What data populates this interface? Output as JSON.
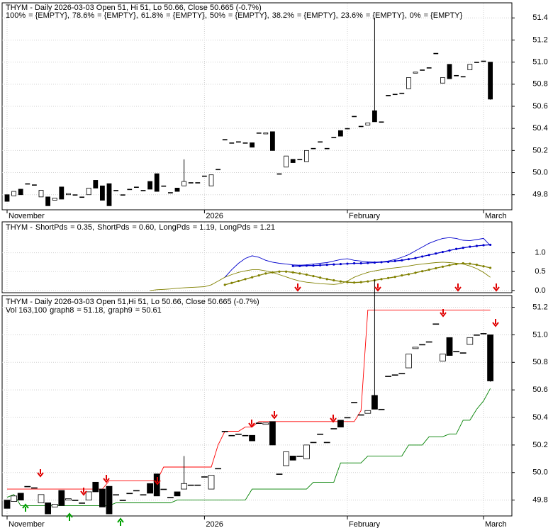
{
  "chart_data": [
    {
      "type": "candlestick",
      "title": "THYM - Daily 2026-03-03 Open 51, Hi 51, Lo 50.66, Close 50.665 (-0.7%)",
      "legend": [
        {
          "label": "100%",
          "text": "= {EMPTY},",
          "color": "#ff0000"
        },
        {
          "label": "78.6%",
          "text": "= {EMPTY},",
          "color": "#cc00cc"
        },
        {
          "label": "61.8%",
          "text": "= {EMPTY},",
          "color": "#a0a0c0"
        },
        {
          "label": "50%",
          "text": "= {EMPTY},",
          "color": "#0000ff"
        },
        {
          "label": "38.2%",
          "text": "= {EMPTY},",
          "color": "#8ca0c8"
        },
        {
          "label": "23.6%",
          "text": "= {EMPTY},",
          "color": "#e0208c"
        },
        {
          "label": "0%",
          "text": "= {EMPTY}",
          "color": "#00a000"
        }
      ],
      "categories": [
        "November",
        null,
        null,
        null,
        null,
        null,
        null,
        null,
        null,
        null,
        null,
        null,
        null,
        null,
        null,
        null,
        null,
        null,
        null,
        null,
        null,
        null,
        null,
        null,
        null,
        null,
        null,
        null,
        null,
        "2026",
        null,
        null,
        null,
        null,
        null,
        null,
        null,
        null,
        null,
        null,
        null,
        null,
        null,
        null,
        null,
        null,
        null,
        null,
        null,
        null,
        "February",
        null,
        null,
        null,
        null,
        null,
        null,
        null,
        null,
        null,
        null,
        null,
        null,
        null,
        null,
        null,
        null,
        null,
        null,
        null,
        "March",
        null
      ],
      "open": [
        49.8,
        49.79,
        49.85,
        49.9,
        49.89,
        49.78,
        49.78,
        49.75,
        49.87,
        49.8,
        49.8,
        49.78,
        49.8,
        49.93,
        49.88,
        49.9,
        49.84,
        49.8,
        49.85,
        49.87,
        49.84,
        49.92,
        49.99,
        49.88,
        49.82,
        49.86,
        49.88,
        49.91,
        49.91,
        49.97,
        49.88,
        50.03,
        50.3,
        50.27,
        50.28,
        50.27,
        50.27,
        50.36,
        50.35,
        50.37,
        49.99,
        50.05,
        50.12,
        50.12,
        50.1,
        50.22,
        50.28,
        50.22,
        50.32,
        50.38,
        50.4,
        50.51,
        50.42,
        50.43,
        50.56,
        50.46,
        50.7,
        50.71,
        50.72,
        50.76,
        50.9,
        50.93,
        50.95,
        51.08,
        50.81,
        50.98,
        50.88,
        50.87,
        50.93,
        51.0,
        51.01,
        51
      ],
      "high": [
        49.8,
        49.83,
        49.85,
        49.9,
        49.89,
        49.84,
        49.78,
        49.77,
        49.87,
        49.81,
        49.8,
        49.78,
        49.86,
        49.93,
        49.88,
        49.9,
        49.84,
        49.8,
        49.85,
        49.87,
        49.84,
        49.92,
        49.99,
        49.88,
        49.82,
        49.86,
        50.12,
        49.91,
        49.91,
        49.97,
        49.98,
        50.03,
        50.3,
        50.27,
        50.28,
        50.27,
        50.27,
        50.36,
        50.36,
        50.37,
        49.99,
        50.15,
        50.12,
        50.12,
        50.2,
        50.22,
        50.28,
        50.22,
        50.32,
        50.38,
        50.4,
        50.51,
        50.42,
        50.45,
        51.4,
        50.46,
        50.7,
        50.71,
        50.72,
        50.86,
        50.91,
        50.93,
        50.95,
        51.08,
        50.86,
        50.98,
        50.88,
        50.87,
        50.98,
        51.0,
        51.01,
        51
      ],
      "low": [
        49.74,
        49.79,
        49.8,
        49.9,
        49.89,
        49.78,
        49.7,
        49.75,
        49.76,
        49.8,
        49.8,
        49.78,
        49.8,
        49.86,
        49.75,
        49.7,
        49.84,
        49.8,
        49.85,
        49.87,
        49.84,
        49.85,
        49.83,
        49.88,
        49.82,
        49.83,
        49.88,
        49.91,
        49.91,
        49.97,
        49.88,
        50.03,
        50.3,
        50.27,
        50.28,
        50.27,
        50.23,
        50.36,
        50.35,
        50.2,
        49.99,
        50.05,
        50.09,
        50.12,
        50.1,
        50.22,
        50.28,
        50.22,
        50.32,
        50.33,
        50.4,
        50.51,
        50.42,
        50.43,
        50.46,
        50.46,
        50.7,
        50.71,
        50.72,
        50.76,
        50.9,
        50.93,
        50.95,
        51.08,
        50.81,
        50.85,
        50.88,
        50.87,
        50.93,
        51.0,
        51.01,
        50.66
      ],
      "close": [
        49.74,
        49.83,
        49.8,
        49.9,
        49.89,
        49.84,
        49.7,
        49.77,
        49.76,
        49.81,
        49.8,
        49.78,
        49.86,
        49.86,
        49.75,
        49.7,
        49.84,
        49.8,
        49.85,
        49.87,
        49.84,
        49.85,
        49.83,
        49.88,
        49.82,
        49.83,
        49.92,
        49.91,
        49.91,
        49.97,
        49.98,
        50.03,
        50.3,
        50.27,
        50.28,
        50.27,
        50.23,
        50.36,
        50.36,
        50.2,
        49.99,
        50.15,
        50.09,
        50.12,
        50.2,
        50.22,
        50.28,
        50.22,
        50.32,
        50.33,
        50.4,
        50.51,
        50.42,
        50.45,
        50.46,
        50.46,
        50.7,
        50.71,
        50.72,
        50.86,
        50.91,
        50.93,
        50.95,
        51.08,
        50.86,
        50.85,
        50.88,
        50.87,
        50.98,
        51.0,
        51.01,
        50.665
      ],
      "up_color": "#ffffff",
      "down_color": "#000000",
      "ylim": [
        49.67,
        51.53
      ],
      "yticks": [
        49.8,
        {
          "value": 50,
          "label": "50.0"
        },
        50.2,
        50.4,
        50.6,
        50.8,
        {
          "value": 51,
          "label": "51.0"
        },
        51.2,
        51.4
      ],
      "grid": true
    },
    {
      "type": "line",
      "title": "THYM -",
      "series": [
        {
          "name": "ShortPds",
          "label": "= 0.35,",
          "color": "#808000",
          "markers": false,
          "values": [
            null,
            null,
            null,
            null,
            null,
            null,
            null,
            null,
            null,
            null,
            null,
            null,
            null,
            null,
            null,
            null,
            null,
            null,
            null,
            null,
            null,
            0.0,
            0.02,
            0.03,
            0.04,
            0.06,
            0.07,
            0.08,
            0.09,
            0.1,
            0.15,
            0.25,
            0.35,
            0.42,
            0.48,
            0.52,
            0.55,
            0.55,
            0.52,
            0.48,
            0.42,
            0.36,
            0.3,
            0.25,
            0.22,
            0.2,
            0.18,
            0.17,
            0.16,
            0.18,
            0.25,
            0.35,
            0.42,
            0.48,
            0.52,
            0.55,
            0.58,
            0.6,
            0.62,
            0.65,
            0.68,
            0.7,
            0.72,
            0.74,
            0.75,
            0.74,
            0.72,
            0.7,
            0.65,
            0.58,
            0.48,
            0.35
          ]
        },
        {
          "name": "ShortPds",
          "label": "= 0.60,",
          "color": "#808000",
          "markers": true,
          "values": [
            null,
            null,
            null,
            null,
            null,
            null,
            null,
            null,
            null,
            null,
            null,
            null,
            null,
            null,
            null,
            null,
            null,
            null,
            null,
            null,
            null,
            null,
            null,
            null,
            null,
            null,
            null,
            null,
            null,
            null,
            null,
            null,
            0.15,
            0.2,
            0.25,
            0.3,
            0.35,
            0.4,
            0.45,
            0.48,
            0.5,
            0.5,
            0.48,
            0.45,
            0.42,
            0.38,
            0.34,
            0.3,
            0.27,
            0.24,
            0.22,
            0.21,
            0.22,
            0.24,
            0.27,
            0.3,
            0.33,
            0.36,
            0.4,
            0.43,
            0.47,
            0.51,
            0.55,
            0.59,
            0.63,
            0.67,
            0.7,
            0.72,
            0.71,
            0.68,
            0.64,
            0.6
          ]
        },
        {
          "name": "LongPds",
          "label": "= 1.19,",
          "color": "#0000cc",
          "markers": false,
          "values": [
            null,
            null,
            null,
            null,
            null,
            null,
            null,
            null,
            null,
            null,
            null,
            null,
            null,
            null,
            null,
            null,
            null,
            null,
            null,
            null,
            null,
            null,
            null,
            null,
            null,
            null,
            null,
            null,
            null,
            null,
            null,
            null,
            0.35,
            0.55,
            0.72,
            0.85,
            0.92,
            0.88,
            0.8,
            0.75,
            0.72,
            0.7,
            0.68,
            0.67,
            0.68,
            0.7,
            0.72,
            0.74,
            0.78,
            0.82,
            0.84,
            0.8,
            0.78,
            0.76,
            0.75,
            0.76,
            0.78,
            0.82,
            0.88,
            0.95,
            1.05,
            1.15,
            1.25,
            1.32,
            1.38,
            1.4,
            1.38,
            1.33,
            1.32,
            1.35,
            1.38,
            1.19
          ]
        },
        {
          "name": "LongPds",
          "label": "= 1.21",
          "color": "#0000cc",
          "markers": true,
          "values": [
            null,
            null,
            null,
            null,
            null,
            null,
            null,
            null,
            null,
            null,
            null,
            null,
            null,
            null,
            null,
            null,
            null,
            null,
            null,
            null,
            null,
            null,
            null,
            null,
            null,
            null,
            null,
            null,
            null,
            null,
            null,
            null,
            null,
            null,
            null,
            null,
            null,
            null,
            null,
            null,
            null,
            null,
            0.65,
            0.65,
            0.66,
            0.66,
            0.67,
            0.68,
            0.69,
            0.7,
            0.71,
            0.72,
            0.72,
            0.73,
            0.74,
            0.75,
            0.76,
            0.78,
            0.8,
            0.83,
            0.86,
            0.9,
            0.94,
            0.98,
            1.02,
            1.06,
            1.1,
            1.13,
            1.16,
            1.18,
            1.2,
            1.21
          ]
        }
      ],
      "ylim": [
        -0.04,
        1.8
      ],
      "yticks": [
        {
          "value": 0,
          "label": "0.0"
        },
        0.5,
        {
          "value": 1,
          "label": "1.0"
        }
      ],
      "grid": true
    },
    {
      "type": "candlestick",
      "title": "THYM - Daily 2026-03-03 Open 51,Hi 51, Lo 50.66, Close 50.665 (-0.7%)",
      "subtitle": "Vol 163,100",
      "series": [
        {
          "name": "graph8",
          "label": "= 51.18,",
          "color": "#ff0000",
          "values": [
            49.88,
            49.88,
            49.88,
            49.88,
            49.88,
            49.88,
            49.88,
            49.88,
            49.88,
            49.88,
            49.88,
            49.88,
            49.88,
            49.88,
            49.88,
            49.94,
            49.94,
            49.94,
            49.94,
            49.94,
            49.94,
            49.94,
            49.94,
            50.04,
            50.04,
            50.04,
            50.04,
            50.04,
            50.04,
            50.04,
            50.04,
            50.2,
            50.3,
            50.3,
            50.3,
            50.33,
            50.33,
            50.37,
            50.37,
            50.37,
            50.37,
            50.37,
            50.37,
            50.37,
            50.37,
            50.37,
            50.37,
            50.37,
            50.37,
            50.37,
            50.37,
            50.37,
            50.45,
            51.18,
            51.18,
            51.18,
            51.18,
            51.18,
            51.18,
            51.18,
            51.18,
            51.18,
            51.18,
            51.18,
            51.18,
            51.18,
            51.18,
            51.18,
            51.18,
            51.18,
            51.18,
            51.18
          ]
        },
        {
          "name": "graph9",
          "label": "= 50.61",
          "color": "#008000",
          "values": [
            49.82,
            49.84,
            49.76,
            49.76,
            49.76,
            49.76,
            49.76,
            49.76,
            49.76,
            49.76,
            49.76,
            49.76,
            49.76,
            49.76,
            49.76,
            49.76,
            49.78,
            49.78,
            49.78,
            49.78,
            49.78,
            49.78,
            49.78,
            49.78,
            49.78,
            49.8,
            49.8,
            49.8,
            49.8,
            49.8,
            49.8,
            49.8,
            49.8,
            49.8,
            49.8,
            49.8,
            49.88,
            49.88,
            49.88,
            49.88,
            49.88,
            49.88,
            49.88,
            49.88,
            49.88,
            49.93,
            49.93,
            49.93,
            49.93,
            50.07,
            50.07,
            50.07,
            50.07,
            50.12,
            50.12,
            50.12,
            50.12,
            50.12,
            50.12,
            50.2,
            50.2,
            50.2,
            50.26,
            50.26,
            50.26,
            50.28,
            50.28,
            50.38,
            50.38,
            50.46,
            50.52,
            50.61
          ]
        }
      ],
      "ylim": [
        49.69,
        51.28
      ],
      "yticks": [
        49.8,
        {
          "value": 50,
          "label": "50.0"
        },
        50.2,
        50.4,
        50.6,
        50.8,
        {
          "value": 51,
          "label": "51.0"
        },
        51.2
      ],
      "grid": true
    }
  ]
}
